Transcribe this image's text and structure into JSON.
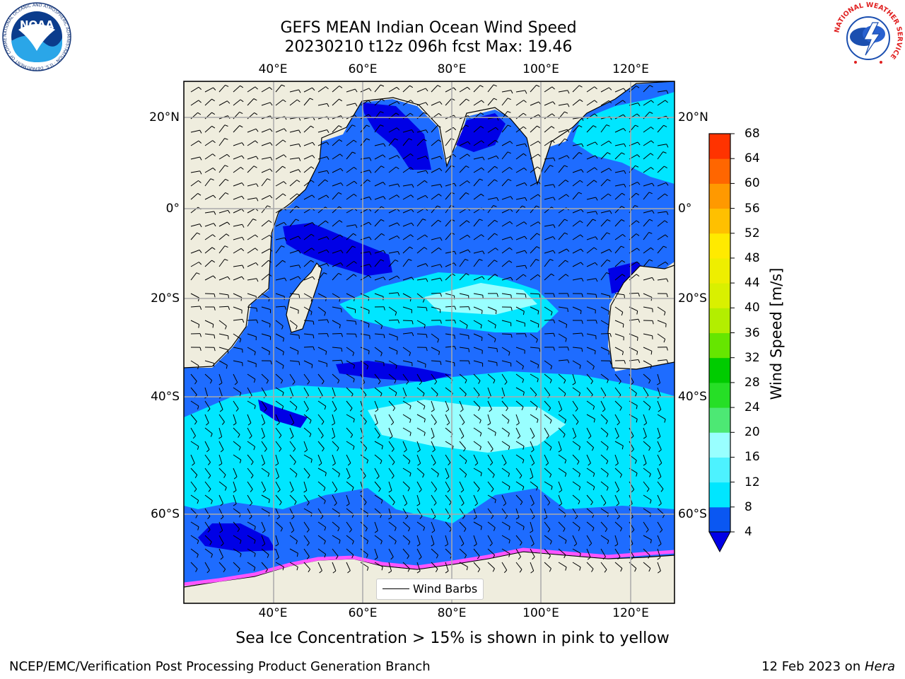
{
  "title": {
    "line1": "GEFS MEAN Indian Ocean Wind Speed",
    "line2": "20230210 t12z 096h fcst   Max: 19.46"
  },
  "map": {
    "lon_labels": [
      "40°E",
      "60°E",
      "80°E",
      "100°E",
      "120°E"
    ],
    "lat_labels": [
      "20°N",
      "0°",
      "20°S",
      "40°S",
      "60°S"
    ],
    "lon_range": [
      20,
      130
    ],
    "lat_range": [
      -75,
      28
    ],
    "legend_label": "Wind Barbs"
  },
  "colorbar": {
    "label": "Wind Speed [m/s]",
    "ticks": [
      "4",
      "8",
      "12",
      "16",
      "20",
      "24",
      "28",
      "32",
      "36",
      "40",
      "44",
      "48",
      "52",
      "56",
      "60",
      "64",
      "68"
    ],
    "colors": [
      "#0a57f2",
      "#00e6ff",
      "#4df2ff",
      "#99ffff",
      "#4de874",
      "#26df26",
      "#00cc00",
      "#66e600",
      "#b3ee00",
      "#d9f000",
      "#eeee00",
      "#ffea00",
      "#ffc000",
      "#ff9900",
      "#ff6600",
      "#ff3300",
      "#ff0000"
    ],
    "under_color": "#0000e6"
  },
  "caption": "Sea Ice Concentration > 15% is shown in pink to yellow",
  "footer": {
    "left": "NCEP/EMC/Verification Post Processing Product Generation Branch",
    "right_prefix": "12 Feb 2023 on ",
    "right_machine": "Hera"
  },
  "logos": {
    "noaa_text": "NOAA",
    "noaa_ring": "NATIONAL OCEANIC AND ATMOSPHERIC ADMINISTRATION · U.S. DEPARTMENT OF COMMERCE",
    "nws_ring": "NATIONAL WEATHER SERVICE"
  },
  "colors": {
    "land": "#efedde",
    "ocean_low": "#0000e6",
    "ocean_mid": "#1e6cff",
    "ocean_high": "#00e6ff",
    "ocean_peak": "#99ffff",
    "ice": "#ff55ff"
  }
}
